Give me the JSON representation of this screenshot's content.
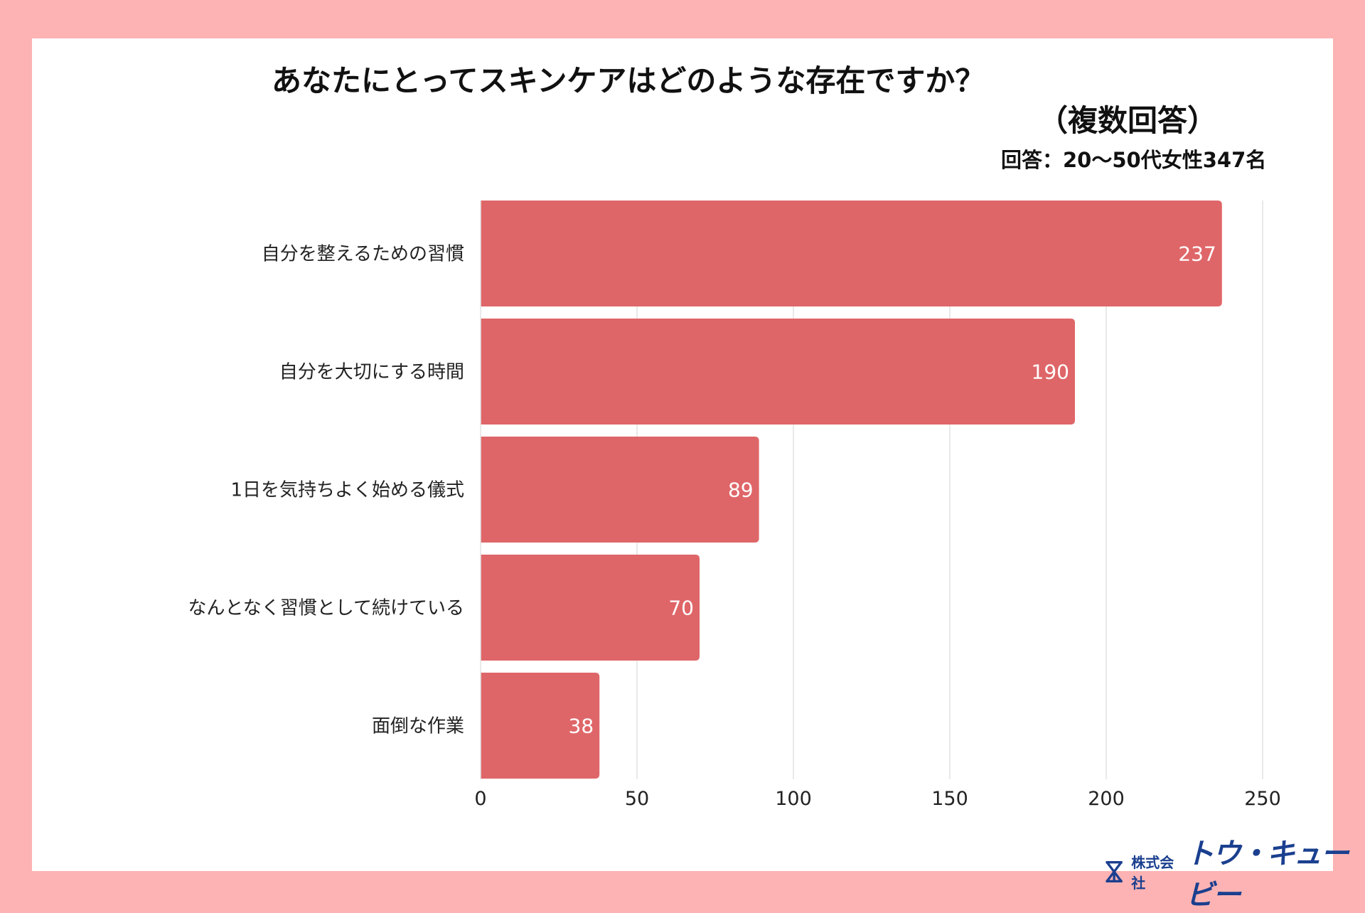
{
  "chart_data": {
    "type": "bar",
    "orientation": "horizontal",
    "title": "あなたにとってスキンケアはどのような存在ですか？",
    "title_line2": "（複数回答）",
    "subtitle": "回答：20〜50代女性347名",
    "categories": [
      "自分を整えるための習慣",
      "自分を大切にする時間",
      "1日を気持ちよく始める儀式",
      "なんとなく習慣として続けている",
      "面倒な作業"
    ],
    "values": [
      237,
      190,
      89,
      70,
      38
    ],
    "xlim": [
      0,
      250
    ],
    "xticks": [
      0,
      50,
      100,
      150,
      200,
      250
    ],
    "grid": true,
    "bar_color": "#df6668",
    "label_color": "#ffffff"
  },
  "colors": {
    "background": "#fdb3b3",
    "panel": "#ffffff",
    "logo": "#1a3f8f"
  },
  "logo": {
    "company_prefix": "株式会社",
    "company_name": "トウ・キュービー"
  }
}
